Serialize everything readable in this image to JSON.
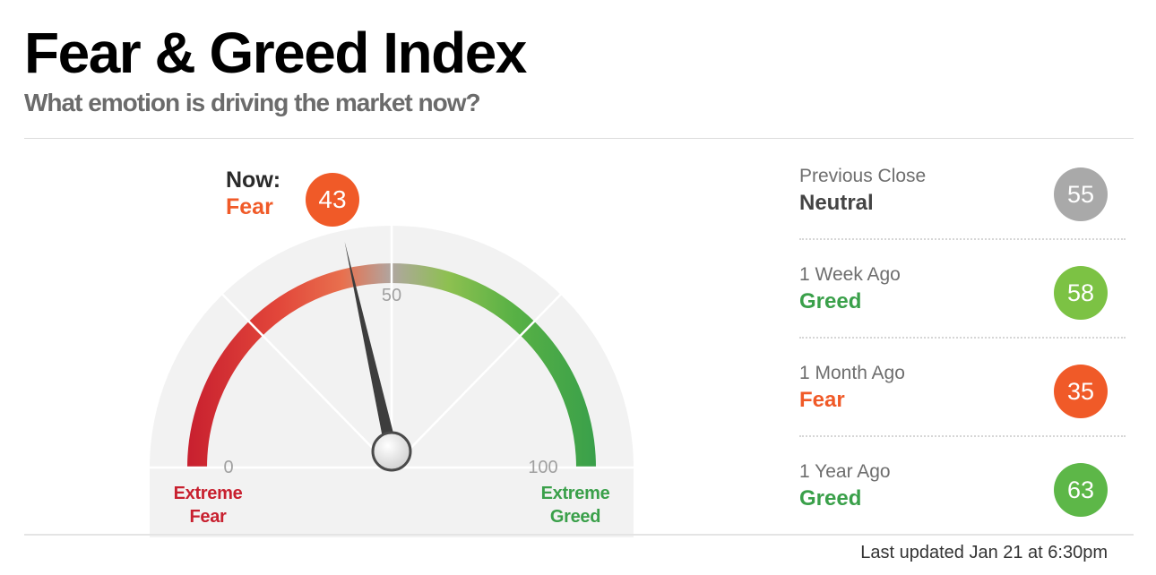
{
  "header": {
    "title": "Fear & Greed Index",
    "subtitle": "What emotion is driving the market now?"
  },
  "gauge": {
    "now_label": "Now:",
    "current_value": 43,
    "current_value_text": "43",
    "current_rating": "Fear",
    "current_color": "#f05a28",
    "min_label": "0",
    "mid_label": "50",
    "max_label": "100",
    "extreme_fear_label": [
      "Extreme",
      "Fear"
    ],
    "extreme_greed_label": [
      "Extreme",
      "Greed"
    ],
    "colors": {
      "extreme_fear": "#c8202f",
      "fear": "#f05a28",
      "neutral": "#a8a8a8",
      "greed": "#7bbd3f",
      "extreme_greed": "#3aa04a"
    }
  },
  "history": [
    {
      "label": "Previous Close",
      "rating": "Neutral",
      "value": "55",
      "rating_color": "#444444",
      "badge_color": "#a9a9a9"
    },
    {
      "label": "1 Week Ago",
      "rating": "Greed",
      "value": "58",
      "rating_color": "#3aa04a",
      "badge_color": "#7cc244"
    },
    {
      "label": "1 Month Ago",
      "rating": "Fear",
      "value": "35",
      "rating_color": "#f05a28",
      "badge_color": "#f05a28"
    },
    {
      "label": "1 Year Ago",
      "rating": "Greed",
      "value": "63",
      "rating_color": "#3aa04a",
      "badge_color": "#5db748"
    }
  ],
  "footer": {
    "last_updated": "Last updated Jan 21 at 6:30pm"
  }
}
